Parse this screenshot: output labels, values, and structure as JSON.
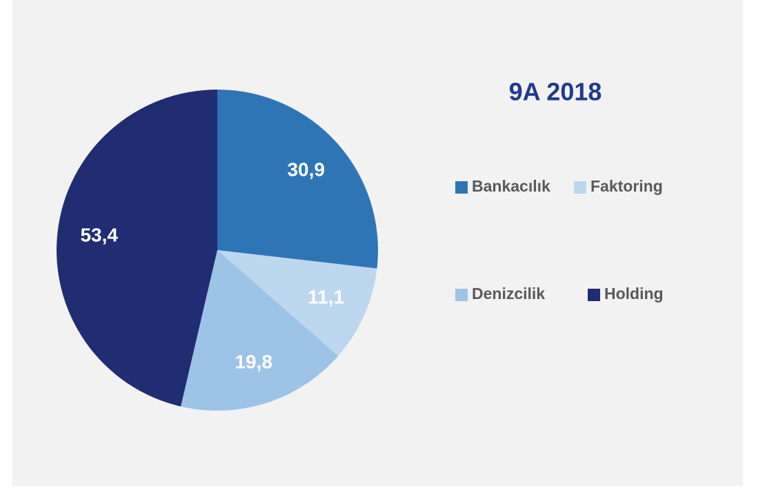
{
  "chart_data": {
    "type": "pie",
    "title": "9A 2018",
    "categories": [
      "Bankacılık",
      "Faktoring",
      "Denizcilik",
      "Holding"
    ],
    "values": [
      30.9,
      11.1,
      19.8,
      53.4
    ],
    "value_labels": [
      "30,9",
      "11,1",
      "19,8",
      "53,4"
    ],
    "colors": [
      "#2e75b6",
      "#bdd7ee",
      "#9dc3e6",
      "#202d73"
    ]
  }
}
